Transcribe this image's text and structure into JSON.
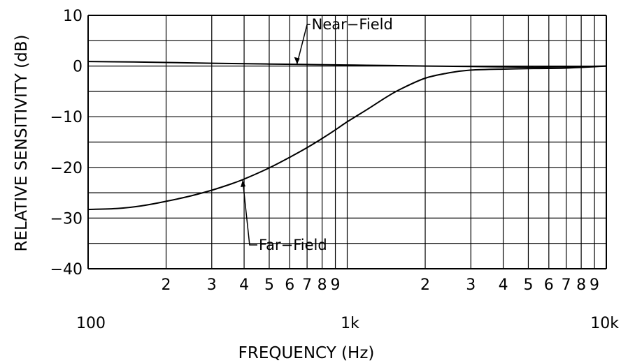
{
  "chart_data": {
    "type": "line",
    "xlabel": "FREQUENCY (Hz)",
    "ylabel": "RELATIVE SENSITIVITY (dB)",
    "xscale": "log",
    "xlim": [
      100,
      10000
    ],
    "ylim": [
      -40,
      10
    ],
    "grid": true,
    "x_decade_labels": [
      "100",
      "1k",
      "10k"
    ],
    "x_minor_labels": [
      "2",
      "3",
      "4",
      "5",
      "6",
      "7",
      "8",
      "9"
    ],
    "y_tick_labels": [
      "10",
      "0",
      "−10",
      "−20",
      "−30",
      "−40"
    ],
    "y_ticks": [
      10,
      0,
      -10,
      -20,
      -30,
      -40
    ],
    "series": [
      {
        "name": "Near−Field",
        "x": [
          100,
          150,
          200,
          300,
          500,
          700,
          1000,
          1500,
          2000,
          3000,
          5000,
          7000,
          10000
        ],
        "y": [
          0.9,
          0.8,
          0.7,
          0.55,
          0.4,
          0.3,
          0.2,
          0.1,
          0.0,
          -0.1,
          -0.2,
          -0.15,
          0.0
        ]
      },
      {
        "name": "Far−Field",
        "x": [
          100,
          130,
          160,
          200,
          250,
          300,
          350,
          400,
          500,
          600,
          700,
          800,
          900,
          1000,
          1200,
          1400,
          1600,
          2000,
          2500,
          3000,
          4000,
          5000,
          7000,
          10000
        ],
        "y": [
          -28.3,
          -28.1,
          -27.6,
          -26.7,
          -25.6,
          -24.5,
          -23.4,
          -22.3,
          -20.1,
          -18.0,
          -16.1,
          -14.3,
          -12.6,
          -11.0,
          -8.5,
          -6.3,
          -4.6,
          -2.4,
          -1.3,
          -0.8,
          -0.6,
          -0.5,
          -0.4,
          0.0
        ]
      }
    ],
    "annotations": [
      {
        "text": "Near−Field",
        "series": "Near−Field"
      },
      {
        "text": "Far−Field",
        "series": "Far−Field"
      }
    ]
  }
}
